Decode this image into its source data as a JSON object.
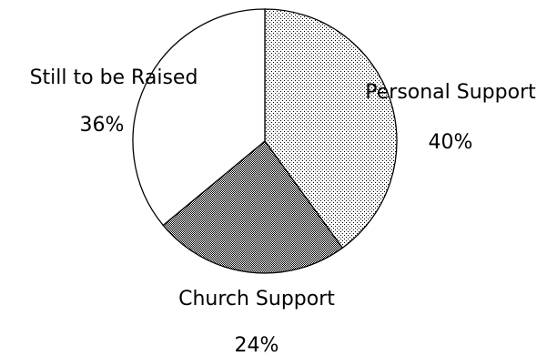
{
  "chart_data": {
    "type": "pie",
    "title": "",
    "start_angle_deg": 0,
    "direction": "clockwise",
    "slices": [
      {
        "label": "Personal Support",
        "value": 40,
        "percent_label": "40%",
        "pattern": "dots-light"
      },
      {
        "label": "Church Support",
        "value": 24,
        "percent_label": "24%",
        "pattern": "dots-dense"
      },
      {
        "label": "Still to be Raised",
        "value": 36,
        "percent_label": "36%",
        "pattern": "none"
      }
    ],
    "colors": {
      "outline": "#000000",
      "background": "#ffffff"
    }
  }
}
